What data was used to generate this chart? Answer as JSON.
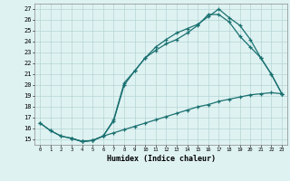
{
  "bg_color": "#dff2f2",
  "grid_color": "#b5d5d5",
  "line_color": "#1a7070",
  "xlabel": "Humidex (Indice chaleur)",
  "xlim": [
    -0.5,
    23.5
  ],
  "ylim": [
    14.5,
    27.5
  ],
  "xticks": [
    0,
    1,
    2,
    3,
    4,
    5,
    6,
    7,
    8,
    9,
    10,
    11,
    12,
    13,
    14,
    15,
    16,
    17,
    18,
    19,
    20,
    21,
    22,
    23
  ],
  "yticks": [
    15,
    16,
    17,
    18,
    19,
    20,
    21,
    22,
    23,
    24,
    25,
    26,
    27
  ],
  "line1_x": [
    0,
    1,
    2,
    3,
    4,
    5,
    6,
    7,
    8,
    9,
    10,
    11,
    12,
    13,
    14,
    15,
    16,
    17,
    18,
    19,
    20,
    21,
    22,
    23
  ],
  "line1_y": [
    16.5,
    15.8,
    15.3,
    15.1,
    14.8,
    14.9,
    15.3,
    16.8,
    20.2,
    21.3,
    22.5,
    23.5,
    24.2,
    24.8,
    25.2,
    25.6,
    26.3,
    27.0,
    26.2,
    25.5,
    24.2,
    22.5,
    21.0,
    19.2
  ],
  "line2_x": [
    3,
    4,
    5,
    6,
    7,
    8,
    9,
    10,
    11,
    12,
    13,
    14,
    15,
    16,
    17,
    18,
    19,
    20,
    21,
    22,
    23
  ],
  "line2_y": [
    15.1,
    14.8,
    14.9,
    15.3,
    16.7,
    20.0,
    21.3,
    22.5,
    23.2,
    23.8,
    24.2,
    24.8,
    25.5,
    26.5,
    26.5,
    25.8,
    24.5,
    23.5,
    22.5,
    21.0,
    19.2
  ],
  "line3_x": [
    0,
    1,
    2,
    3,
    4,
    5,
    6,
    7,
    8,
    9,
    10,
    11,
    12,
    13,
    14,
    15,
    16,
    17,
    18,
    19,
    20,
    21,
    22,
    23
  ],
  "line3_y": [
    16.5,
    15.8,
    15.3,
    15.1,
    14.8,
    14.9,
    15.3,
    15.6,
    15.9,
    16.2,
    16.5,
    16.8,
    17.1,
    17.4,
    17.7,
    18.0,
    18.2,
    18.5,
    18.7,
    18.9,
    19.1,
    19.2,
    19.3,
    19.2
  ]
}
